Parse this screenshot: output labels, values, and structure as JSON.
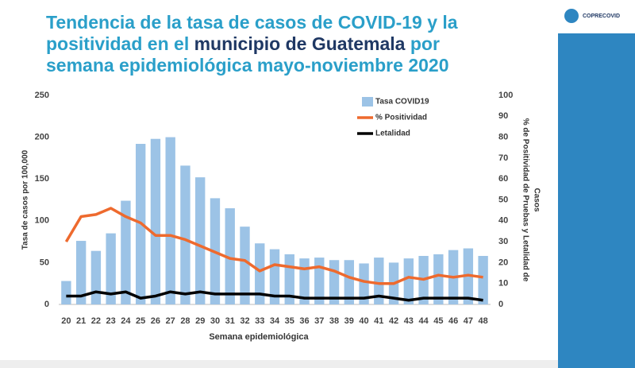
{
  "logo": "COPRECOVID",
  "chart_data": {
    "type": "bar-line",
    "title_lines": [
      [
        "Tendencia de la tasa de casos de COVID-19 y la"
      ],
      [
        "positividad en el ",
        "municipio de Guatemala",
        " por"
      ],
      [
        "semana epidemiológica mayo-noviembre 2020"
      ]
    ],
    "xlabel": "Semana epidemiológica",
    "ylabel": "Tasa de casos por 100,000",
    "y2label_lines": [
      "% de Positividad de Pruebas y Letalidad de",
      "Casos"
    ],
    "categories": [
      "20",
      "21",
      "22",
      "23",
      "24",
      "25",
      "26",
      "27",
      "28",
      "29",
      "30",
      "31",
      "32",
      "33",
      "34",
      "35",
      "36",
      "37",
      "38",
      "39",
      "40",
      "41",
      "42",
      "43",
      "44",
      "45",
      "46",
      "47",
      "48"
    ],
    "series": [
      {
        "name": "Tasa COVID19",
        "kind": "bar",
        "color": "#9cc3e6",
        "values": [
          28,
          76,
          64,
          85,
          124,
          192,
          198,
          200,
          166,
          152,
          127,
          115,
          93,
          73,
          66,
          60,
          55,
          56,
          53,
          53,
          49,
          56,
          50,
          55,
          58,
          60,
          65,
          67,
          58
        ]
      },
      {
        "name": "% Positividad",
        "kind": "line",
        "axis": "y2",
        "color": "#ee6a2e",
        "values": [
          30,
          42,
          43,
          46,
          42,
          39,
          33,
          33,
          31,
          28,
          25,
          22,
          21,
          16,
          19,
          18,
          17,
          18,
          16,
          13,
          11,
          10,
          10,
          13,
          12,
          14,
          13,
          14,
          13
        ]
      },
      {
        "name": "Letalidad",
        "kind": "line",
        "axis": "y2",
        "color": "#000000",
        "values": [
          4,
          4,
          6,
          5,
          6,
          3,
          4,
          6,
          5,
          6,
          5,
          5,
          5,
          5,
          4,
          4,
          3,
          3,
          3,
          3,
          3,
          4,
          3,
          2,
          3,
          3,
          3,
          3,
          2
        ]
      }
    ],
    "ylim": [
      0,
      250
    ],
    "yticks": [
      0,
      50,
      100,
      150,
      200,
      250
    ],
    "y2lim": [
      0,
      100
    ],
    "y2ticks": [
      0,
      10,
      20,
      30,
      40,
      50,
      60,
      70,
      80,
      90,
      100
    ],
    "legend": "upper-right"
  }
}
